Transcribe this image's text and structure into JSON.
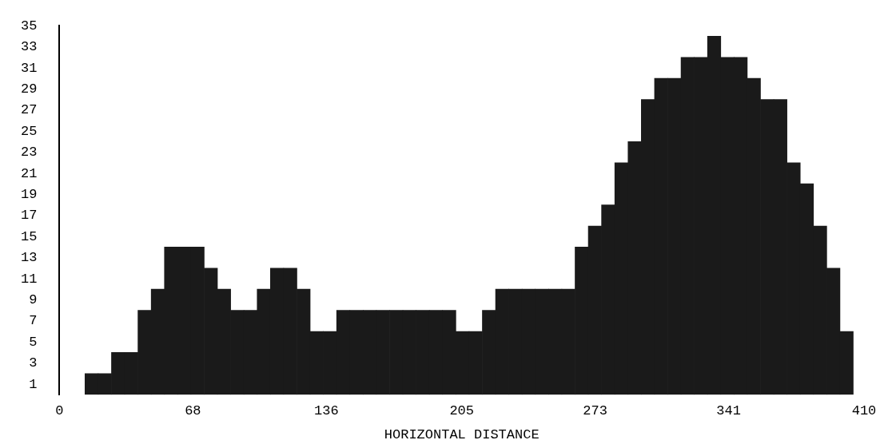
{
  "chart_data": {
    "type": "histogram",
    "xlabel": "HORIZONTAL DISTANCE",
    "bins": [
      13,
      19.75,
      26.5,
      33.25,
      40,
      46.75,
      53.5,
      60.25,
      67,
      73.75,
      80.5,
      87.25,
      94,
      100.75,
      107.5,
      114.25,
      121,
      127.75,
      134.5,
      141.25,
      148,
      154.75,
      161.5,
      168.25,
      175,
      181.75,
      188.5,
      195.25,
      202,
      208.75,
      215.5,
      222.25,
      229,
      235.75,
      242.5,
      249.25,
      256,
      262.75,
      269.5,
      276.25,
      283,
      289.75,
      296.5,
      303.25,
      310,
      316.75,
      323.5,
      330.25,
      337,
      343.75,
      350.5,
      357.25,
      364,
      370.75,
      377.5,
      384.25,
      391,
      397.75,
      404.5
    ],
    "values": [
      2,
      2,
      4,
      4,
      8,
      10,
      14,
      14,
      14,
      12,
      10,
      8,
      8,
      10,
      12,
      12,
      10,
      6,
      6,
      8,
      8,
      8,
      8,
      8,
      8,
      8,
      8,
      8,
      6,
      6,
      8,
      10,
      10,
      10,
      10,
      10,
      10,
      14,
      16,
      18,
      22,
      24,
      28,
      30,
      30,
      32,
      32,
      34,
      32,
      32,
      30,
      28,
      28,
      22,
      20,
      16,
      12,
      6
    ],
    "color": "#1a1a1a",
    "xlim": [
      0,
      410
    ],
    "xticks": [
      0,
      68,
      136,
      205,
      273,
      341,
      410
    ],
    "ylim": [
      0,
      35
    ],
    "yticks": [
      1,
      3,
      5,
      7,
      9,
      11,
      13,
      15,
      17,
      19,
      21,
      23,
      25,
      27,
      29,
      31,
      33,
      35
    ],
    "grid": false,
    "legend": false
  }
}
